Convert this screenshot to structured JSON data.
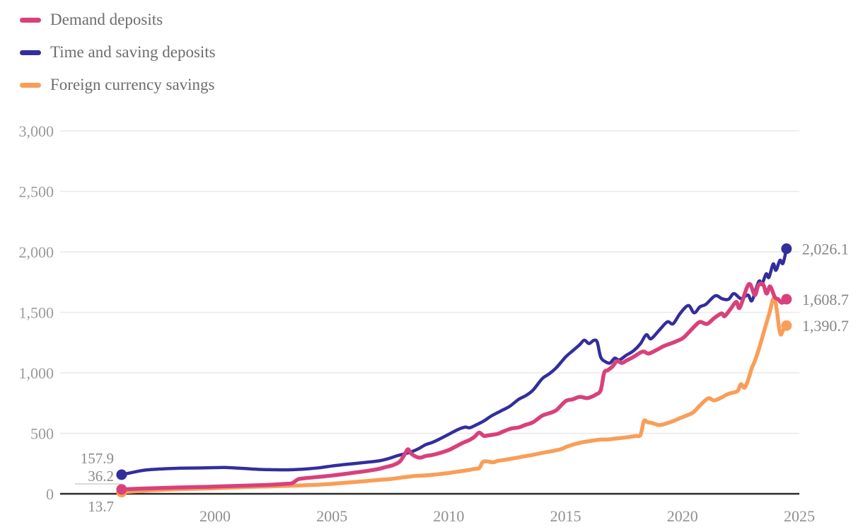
{
  "legend": {
    "items": [
      {
        "label": "Demand deposits",
        "color": "#d8417b"
      },
      {
        "label": "Time and saving deposits",
        "color": "#332e9c"
      },
      {
        "label": "Foreign currency savings",
        "color": "#f99e58"
      }
    ]
  },
  "chart_data": {
    "type": "line",
    "title": "",
    "x_axis": {
      "ticks": [
        2000,
        2005,
        2010,
        2015,
        2020,
        2025
      ],
      "domain": [
        1993.37,
        2025.0
      ],
      "grid": false
    },
    "y_axis": {
      "ticks": [
        0,
        500,
        1000,
        1500,
        2000,
        2500,
        3000
      ],
      "tick_labels": [
        "0",
        "500",
        "1,000",
        "1,500",
        "2,000",
        "2,500",
        "3,000"
      ],
      "domain": [
        0,
        3000
      ],
      "grid": true
    },
    "grid_color": "#e9e9e9",
    "zero_axis_color": "#2b2b2b",
    "series": [
      {
        "name": "Demand deposits",
        "color": "#d8417b",
        "start_label": "36.2",
        "start_label_underline": true,
        "end_label": "1,608.7",
        "points": [
          [
            1996.0,
            36.2
          ],
          [
            1996.5,
            40
          ],
          [
            1997.0,
            44
          ],
          [
            1997.5,
            47
          ],
          [
            1998.0,
            50
          ],
          [
            1998.5,
            53
          ],
          [
            1999.0,
            55
          ],
          [
            1999.5,
            57
          ],
          [
            2000.0,
            60
          ],
          [
            2000.5,
            63
          ],
          [
            2001.0,
            66
          ],
          [
            2001.5,
            69
          ],
          [
            2002.0,
            72
          ],
          [
            2002.5,
            76
          ],
          [
            2003.0,
            82
          ],
          [
            2003.3,
            88
          ],
          [
            2003.55,
            120
          ],
          [
            2003.8,
            128
          ],
          [
            2004.0,
            132
          ],
          [
            2004.5,
            141
          ],
          [
            2005.0,
            151
          ],
          [
            2005.5,
            163
          ],
          [
            2006.0,
            176
          ],
          [
            2006.5,
            189
          ],
          [
            2007.0,
            206
          ],
          [
            2007.3,
            221
          ],
          [
            2007.6,
            236
          ],
          [
            2007.9,
            266
          ],
          [
            2008.1,
            322
          ],
          [
            2008.25,
            368
          ],
          [
            2008.4,
            331
          ],
          [
            2008.6,
            306
          ],
          [
            2008.8,
            299
          ],
          [
            2009.0,
            312
          ],
          [
            2009.3,
            321
          ],
          [
            2009.6,
            336
          ],
          [
            2010.0,
            362
          ],
          [
            2010.3,
            391
          ],
          [
            2010.6,
            421
          ],
          [
            2010.9,
            446
          ],
          [
            2011.1,
            471
          ],
          [
            2011.3,
            506
          ],
          [
            2011.5,
            479
          ],
          [
            2011.7,
            483
          ],
          [
            2011.9,
            489
          ],
          [
            2012.1,
            496
          ],
          [
            2012.4,
            521
          ],
          [
            2012.7,
            541
          ],
          [
            2013.0,
            549
          ],
          [
            2013.3,
            571
          ],
          [
            2013.6,
            591
          ],
          [
            2014.0,
            646
          ],
          [
            2014.3,
            666
          ],
          [
            2014.6,
            691
          ],
          [
            2015.0,
            766
          ],
          [
            2015.3,
            781
          ],
          [
            2015.6,
            801
          ],
          [
            2015.9,
            791
          ],
          [
            2016.1,
            801
          ],
          [
            2016.3,
            821
          ],
          [
            2016.5,
            856
          ],
          [
            2016.65,
            1001
          ],
          [
            2016.8,
            1021
          ],
          [
            2017.0,
            1051
          ],
          [
            2017.2,
            1096
          ],
          [
            2017.4,
            1081
          ],
          [
            2017.6,
            1101
          ],
          [
            2017.9,
            1131
          ],
          [
            2018.3,
            1176
          ],
          [
            2018.55,
            1159
          ],
          [
            2018.9,
            1190
          ],
          [
            2019.2,
            1221
          ],
          [
            2019.55,
            1246
          ],
          [
            2019.8,
            1266
          ],
          [
            2020.05,
            1292
          ],
          [
            2020.5,
            1381
          ],
          [
            2020.75,
            1421
          ],
          [
            2021.05,
            1404
          ],
          [
            2021.35,
            1451
          ],
          [
            2021.67,
            1491
          ],
          [
            2021.8,
            1468
          ],
          [
            2022.05,
            1526
          ],
          [
            2022.3,
            1586
          ],
          [
            2022.45,
            1538
          ],
          [
            2022.75,
            1702
          ],
          [
            2022.9,
            1731
          ],
          [
            2023.1,
            1643
          ],
          [
            2023.25,
            1725
          ],
          [
            2023.45,
            1731
          ],
          [
            2023.6,
            1655
          ],
          [
            2023.75,
            1714
          ],
          [
            2023.95,
            1626
          ],
          [
            2024.1,
            1608
          ],
          [
            2024.25,
            1579
          ],
          [
            2024.45,
            1608.7
          ]
        ]
      },
      {
        "name": "Time and saving deposits",
        "color": "#332e9c",
        "start_label": "157.9",
        "start_label_underline": false,
        "end_label": "2,026.1",
        "points": [
          [
            1996.0,
            157.9
          ],
          [
            1996.3,
            170
          ],
          [
            1996.7,
            186
          ],
          [
            1997.0,
            196
          ],
          [
            1997.5,
            203
          ],
          [
            1998.0,
            208
          ],
          [
            1998.5,
            212
          ],
          [
            1999.0,
            213
          ],
          [
            1999.5,
            214
          ],
          [
            2000.0,
            216
          ],
          [
            2000.4,
            218
          ],
          [
            2000.8,
            214
          ],
          [
            2001.2,
            210
          ],
          [
            2001.6,
            205
          ],
          [
            2002.0,
            201
          ],
          [
            2002.5,
            199
          ],
          [
            2003.0,
            198
          ],
          [
            2003.5,
            201
          ],
          [
            2004.0,
            207
          ],
          [
            2004.5,
            216
          ],
          [
            2005.0,
            230
          ],
          [
            2005.5,
            241
          ],
          [
            2006.0,
            251
          ],
          [
            2006.5,
            261
          ],
          [
            2007.0,
            272
          ],
          [
            2007.4,
            290
          ],
          [
            2007.8,
            315
          ],
          [
            2008.1,
            330
          ],
          [
            2008.4,
            347
          ],
          [
            2008.7,
            372
          ],
          [
            2009.0,
            405
          ],
          [
            2009.3,
            425
          ],
          [
            2009.6,
            452
          ],
          [
            2009.9,
            482
          ],
          [
            2010.1,
            502
          ],
          [
            2010.4,
            532
          ],
          [
            2010.7,
            551
          ],
          [
            2010.9,
            546
          ],
          [
            2011.2,
            572
          ],
          [
            2011.5,
            602
          ],
          [
            2011.8,
            641
          ],
          [
            2012.0,
            662
          ],
          [
            2012.3,
            692
          ],
          [
            2012.6,
            722
          ],
          [
            2013.0,
            782
          ],
          [
            2013.3,
            812
          ],
          [
            2013.6,
            856
          ],
          [
            2014.0,
            952
          ],
          [
            2014.3,
            992
          ],
          [
            2014.6,
            1042
          ],
          [
            2015.0,
            1131
          ],
          [
            2015.3,
            1182
          ],
          [
            2015.6,
            1232
          ],
          [
            2015.8,
            1270
          ],
          [
            2016.0,
            1242
          ],
          [
            2016.2,
            1268
          ],
          [
            2016.35,
            1255
          ],
          [
            2016.5,
            1131
          ],
          [
            2016.7,
            1092
          ],
          [
            2016.9,
            1081
          ],
          [
            2017.1,
            1121
          ],
          [
            2017.3,
            1106
          ],
          [
            2017.6,
            1146
          ],
          [
            2017.9,
            1181
          ],
          [
            2018.2,
            1240
          ],
          [
            2018.45,
            1315
          ],
          [
            2018.65,
            1281
          ],
          [
            2019.0,
            1351
          ],
          [
            2019.35,
            1421
          ],
          [
            2019.6,
            1406
          ],
          [
            2019.9,
            1491
          ],
          [
            2020.25,
            1556
          ],
          [
            2020.5,
            1496
          ],
          [
            2020.75,
            1546
          ],
          [
            2021.0,
            1566
          ],
          [
            2021.4,
            1637
          ],
          [
            2021.7,
            1612
          ],
          [
            2021.97,
            1608
          ],
          [
            2022.2,
            1655
          ],
          [
            2022.5,
            1614
          ],
          [
            2022.8,
            1643
          ],
          [
            2022.97,
            1596
          ],
          [
            2023.2,
            1725
          ],
          [
            2023.3,
            1760
          ],
          [
            2023.4,
            1731
          ],
          [
            2023.58,
            1818
          ],
          [
            2023.7,
            1789
          ],
          [
            2023.88,
            1900
          ],
          [
            2024.0,
            1848
          ],
          [
            2024.17,
            1930
          ],
          [
            2024.3,
            1905
          ],
          [
            2024.45,
            2026.1
          ]
        ]
      },
      {
        "name": "Foreign currency savings",
        "color": "#f99e58",
        "start_label": "13.7",
        "start_label_underline": false,
        "end_label": "1,390.7",
        "points": [
          [
            1996.0,
            13.7
          ],
          [
            1996.5,
            20
          ],
          [
            1997.0,
            26
          ],
          [
            1997.5,
            31
          ],
          [
            1998.0,
            35
          ],
          [
            1998.5,
            38
          ],
          [
            1999.0,
            41
          ],
          [
            1999.5,
            43
          ],
          [
            2000.0,
            46
          ],
          [
            2000.5,
            50
          ],
          [
            2001.0,
            54
          ],
          [
            2001.5,
            57
          ],
          [
            2002.0,
            60
          ],
          [
            2002.5,
            62
          ],
          [
            2003.0,
            65
          ],
          [
            2003.5,
            68
          ],
          [
            2004.0,
            72
          ],
          [
            2004.5,
            76
          ],
          [
            2005.0,
            82
          ],
          [
            2005.5,
            90
          ],
          [
            2006.0,
            98
          ],
          [
            2006.5,
            106
          ],
          [
            2007.0,
            115
          ],
          [
            2007.5,
            122
          ],
          [
            2008.0,
            135
          ],
          [
            2008.3,
            142
          ],
          [
            2008.6,
            148
          ],
          [
            2009.0,
            152
          ],
          [
            2009.5,
            161
          ],
          [
            2010.0,
            172
          ],
          [
            2010.3,
            181
          ],
          [
            2010.6,
            189
          ],
          [
            2010.9,
            198
          ],
          [
            2011.1,
            206
          ],
          [
            2011.3,
            212
          ],
          [
            2011.45,
            262
          ],
          [
            2011.6,
            268
          ],
          [
            2011.9,
            261
          ],
          [
            2012.1,
            272
          ],
          [
            2012.4,
            281
          ],
          [
            2012.7,
            291
          ],
          [
            2013.0,
            301
          ],
          [
            2013.3,
            312
          ],
          [
            2013.6,
            322
          ],
          [
            2014.0,
            338
          ],
          [
            2014.4,
            352
          ],
          [
            2014.8,
            369
          ],
          [
            2015.0,
            386
          ],
          [
            2015.3,
            406
          ],
          [
            2015.6,
            421
          ],
          [
            2015.9,
            432
          ],
          [
            2016.2,
            441
          ],
          [
            2016.5,
            448
          ],
          [
            2016.8,
            449
          ],
          [
            2017.1,
            456
          ],
          [
            2017.4,
            462
          ],
          [
            2017.7,
            469
          ],
          [
            2018.0,
            478
          ],
          [
            2018.2,
            486
          ],
          [
            2018.35,
            601
          ],
          [
            2018.5,
            592
          ],
          [
            2018.7,
            585
          ],
          [
            2019.0,
            568
          ],
          [
            2019.3,
            581
          ],
          [
            2019.6,
            601
          ],
          [
            2019.9,
            626
          ],
          [
            2020.1,
            641
          ],
          [
            2020.45,
            672
          ],
          [
            2020.75,
            731
          ],
          [
            2021.1,
            789
          ],
          [
            2021.35,
            772
          ],
          [
            2021.67,
            796
          ],
          [
            2021.88,
            819
          ],
          [
            2022.05,
            831
          ],
          [
            2022.35,
            849
          ],
          [
            2022.5,
            906
          ],
          [
            2022.65,
            877
          ],
          [
            2022.8,
            936
          ],
          [
            2022.97,
            1041
          ],
          [
            2023.1,
            1099
          ],
          [
            2023.3,
            1216
          ],
          [
            2023.5,
            1351
          ],
          [
            2023.7,
            1480
          ],
          [
            2023.94,
            1615
          ],
          [
            2024.17,
            1333
          ],
          [
            2024.3,
            1351
          ],
          [
            2024.45,
            1390.7
          ]
        ]
      }
    ]
  }
}
